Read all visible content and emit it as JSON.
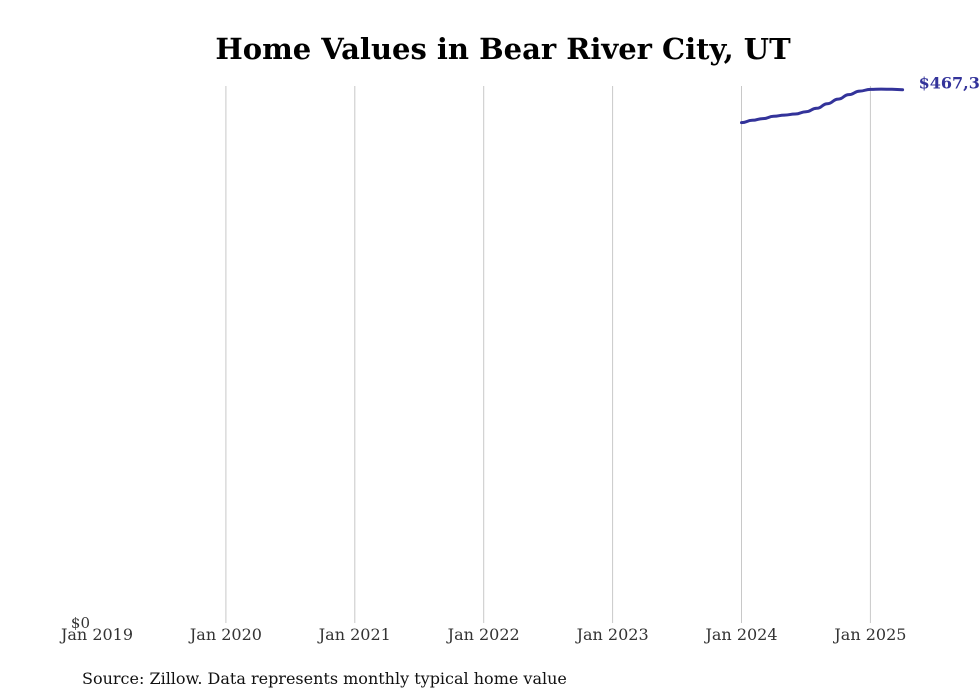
{
  "chart_data": {
    "type": "line",
    "title": "Home Values in Bear River City, UT",
    "xlabel": "",
    "ylabel": "",
    "x_tick_labels": [
      "Jan 2019",
      "Jan 2020",
      "Jan 2021",
      "Jan 2022",
      "Jan 2023",
      "Jan 2024",
      "Jan 2025"
    ],
    "y_tick_labels": [
      "$0"
    ],
    "xlim": [
      "2019-01",
      "2025-04"
    ],
    "ylim": [
      0,
      470000
    ],
    "grid": "vertical",
    "series": [
      {
        "color": "#33339a",
        "end_label": "$467,3",
        "points": [
          {
            "x": "2024-01",
            "y": 438000
          },
          {
            "x": "2024-02",
            "y": 440000
          },
          {
            "x": "2024-03",
            "y": 441500
          },
          {
            "x": "2024-04",
            "y": 443500
          },
          {
            "x": "2024-05",
            "y": 444500
          },
          {
            "x": "2024-06",
            "y": 445500
          },
          {
            "x": "2024-07",
            "y": 447500
          },
          {
            "x": "2024-08",
            "y": 450500
          },
          {
            "x": "2024-09",
            "y": 454500
          },
          {
            "x": "2024-10",
            "y": 458500
          },
          {
            "x": "2024-11",
            "y": 462500
          },
          {
            "x": "2024-12",
            "y": 465500
          },
          {
            "x": "2025-01",
            "y": 467000
          },
          {
            "x": "2025-02",
            "y": 467300
          },
          {
            "x": "2025-03",
            "y": 467100
          },
          {
            "x": "2025-04",
            "y": 466800
          }
        ]
      }
    ]
  },
  "source_note": "Source: Zillow. Data represents monthly typical home value"
}
